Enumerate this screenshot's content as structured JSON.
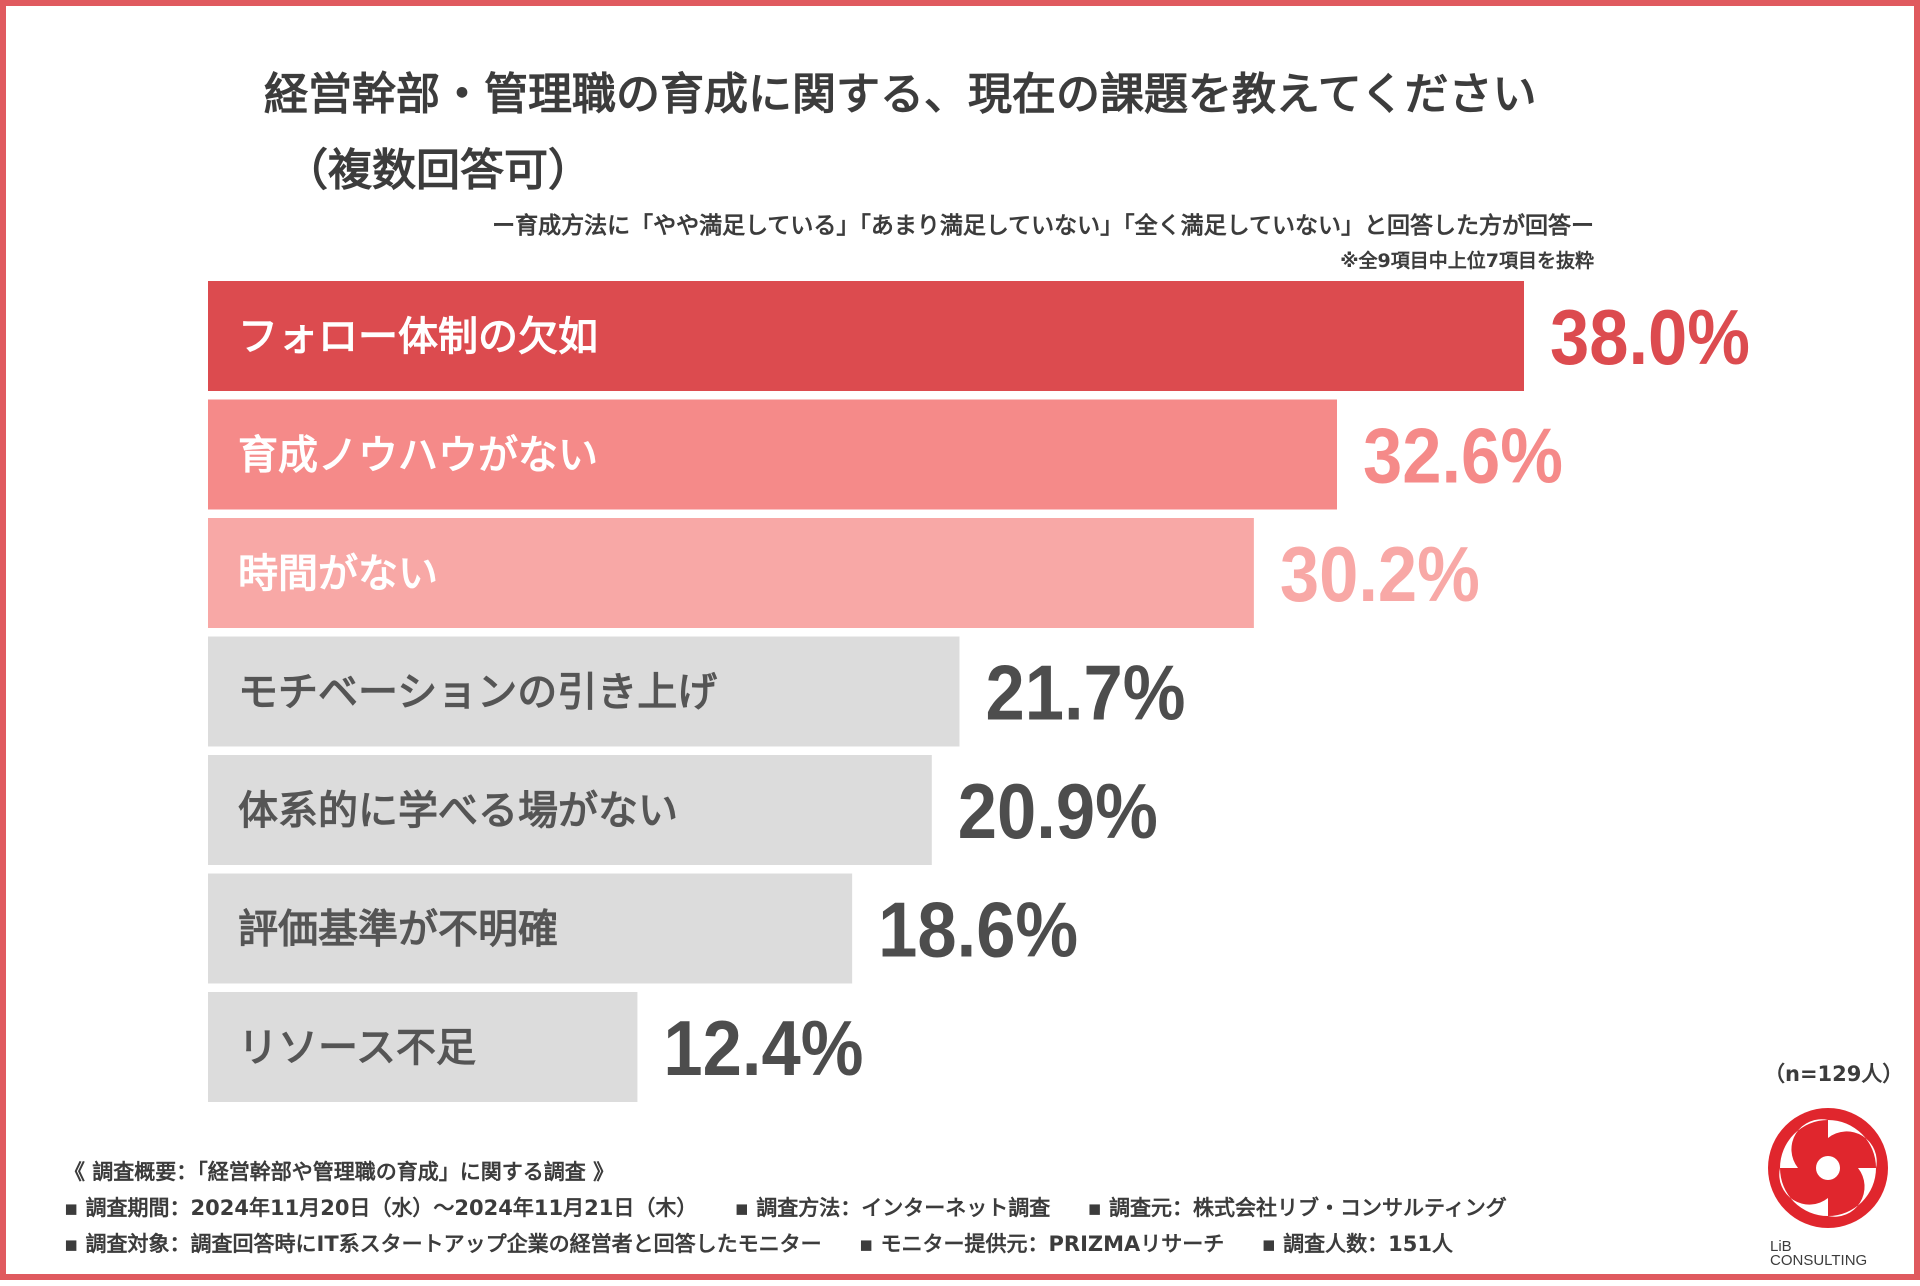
{
  "title": {
    "line1": "経営幹部・管理職の育成に関する、現在の課題を教えてください",
    "line2": "（複数回答可）",
    "subtitle": "ー育成方法に「やや満足している」「あまり満足していない」「全く満足していない」と回答した方が回答ー",
    "note": "※全9項目中上位7項目を抜粋"
  },
  "chart_data": {
    "type": "bar",
    "orientation": "horizontal",
    "title": "経営幹部・管理職の育成に関する、現在の課題を教えてください（複数回答可）",
    "xlabel": "",
    "ylabel": "",
    "unit": "%",
    "xlim": [
      0,
      40
    ],
    "categories": [
      "フォロー体制の欠如",
      "育成ノウハウがない",
      "時間がない",
      "モチベーションの引き上げ",
      "体系的に学べる場がない",
      "評価基準が不明確",
      "リソース不足"
    ],
    "values": [
      38.0,
      32.6,
      30.2,
      21.7,
      20.9,
      18.6,
      12.4
    ],
    "value_labels": [
      "38.0%",
      "32.6%",
      "30.2%",
      "21.7%",
      "20.9%",
      "18.6%",
      "12.4%"
    ],
    "bar_colors": [
      "#dc4b4f",
      "#f58a89",
      "#f8a8a6",
      "#dcdcdc",
      "#dcdcdc",
      "#dcdcdc",
      "#dcdcdc"
    ],
    "label_colors": [
      "#ffffff",
      "#ffffff",
      "#ffffff",
      "#555555",
      "#555555",
      "#555555",
      "#555555"
    ],
    "value_colors": [
      "#dc4b4f",
      "#f58a89",
      "#f8a8a6",
      "#4d4d4d",
      "#4d4d4d",
      "#4d4d4d",
      "#4d4d4d"
    ]
  },
  "sample_size": "（n=129人）",
  "footer": {
    "line1": "《 調査概要：「経営幹部や管理職の育成」に関する調査 》",
    "period": "▪ 調査期間：2024年11月20日（水）〜2024年11月21日（木）",
    "method": "▪ 調査方法：インターネット調査",
    "organizer": "▪ 調査元：株式会社リブ・コンサルティング",
    "target": "▪ 調査対象：調査回答時にIT系スタートアップ企業の経営者と回答したモニター",
    "provider": "▪ モニター提供元：PRIZMAリサーチ",
    "count": "▪ 調査人数：151人"
  },
  "logo": {
    "line1": "LiB",
    "line2": "CONSULTING",
    "color": "#e0262d"
  }
}
